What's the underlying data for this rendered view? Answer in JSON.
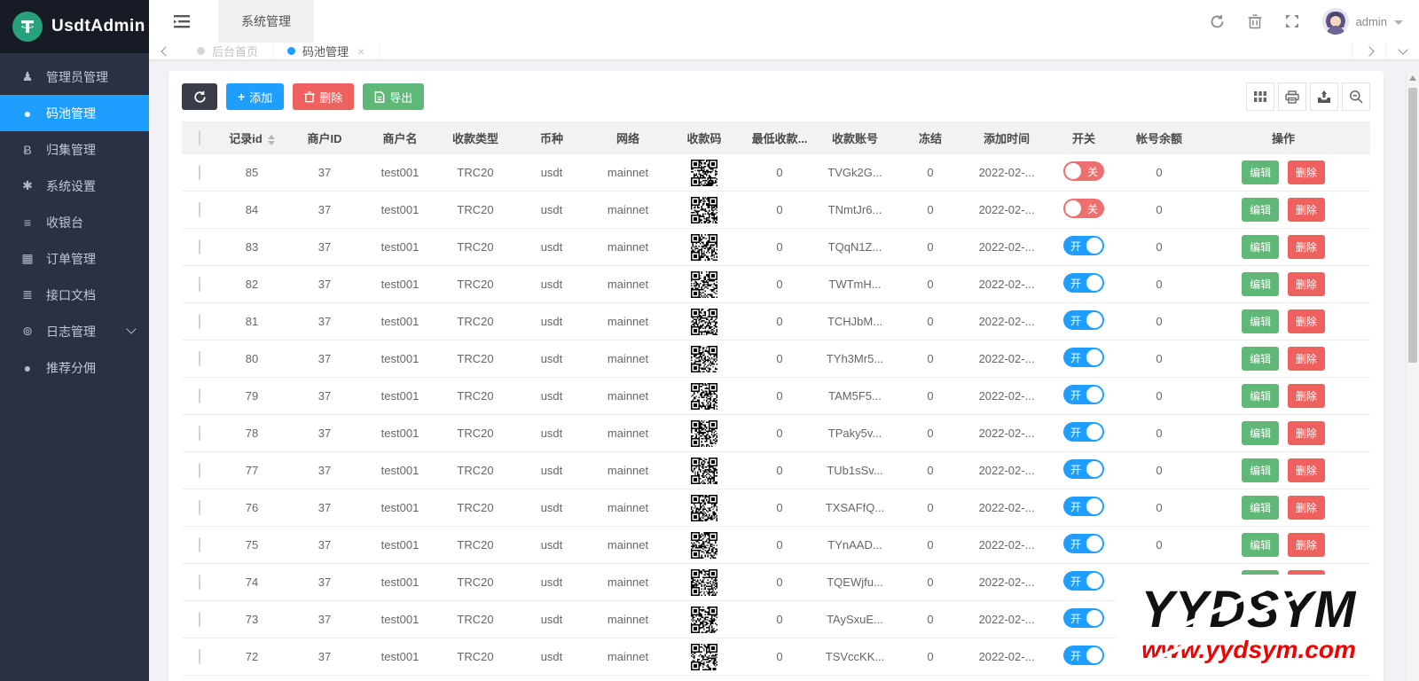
{
  "app": {
    "title": "UsdtAdmin"
  },
  "sidebar": {
    "items": [
      {
        "id": "admin-manage",
        "label": "管理员管理",
        "icon": "user",
        "active": false,
        "expandable": false
      },
      {
        "id": "code-pool",
        "label": "码池管理",
        "icon": "pool",
        "active": true,
        "expandable": false
      },
      {
        "id": "collection",
        "label": "归集管理",
        "icon": "bitcoin",
        "active": false,
        "expandable": false
      },
      {
        "id": "system-settings",
        "label": "系统设置",
        "icon": "settings",
        "active": false,
        "expandable": false
      },
      {
        "id": "cashier",
        "label": "收银台",
        "icon": "cashier",
        "active": false,
        "expandable": false
      },
      {
        "id": "orders",
        "label": "订单管理",
        "icon": "orders",
        "active": false,
        "expandable": false
      },
      {
        "id": "api-docs",
        "label": "接口文档",
        "icon": "docs",
        "active": false,
        "expandable": false
      },
      {
        "id": "logs",
        "label": "日志管理",
        "icon": "logs",
        "active": false,
        "expandable": true
      },
      {
        "id": "referral",
        "label": "推荐分佣",
        "icon": "referral",
        "active": false,
        "expandable": false
      }
    ]
  },
  "topbar": {
    "active_tab": "系统管理",
    "username": "admin"
  },
  "tabbar": {
    "tabs": [
      {
        "label": "后台首页",
        "active": false
      },
      {
        "label": "码池管理",
        "active": true
      }
    ]
  },
  "toolbar": {
    "add_label": "添加",
    "delete_label": "删除",
    "export_label": "导出"
  },
  "table": {
    "headers": [
      {
        "label": "记录id",
        "sortable": true
      },
      {
        "label": "商户ID",
        "sortable": false
      },
      {
        "label": "商户名",
        "sortable": false
      },
      {
        "label": "收款类型",
        "sortable": false
      },
      {
        "label": "币种",
        "sortable": false
      },
      {
        "label": "网络",
        "sortable": false
      },
      {
        "label": "收款码",
        "sortable": false
      },
      {
        "label": "最低收款...",
        "sortable": false
      },
      {
        "label": "收款账号",
        "sortable": false
      },
      {
        "label": "冻结",
        "sortable": false
      },
      {
        "label": "添加时间",
        "sortable": false
      },
      {
        "label": "开关",
        "sortable": false
      },
      {
        "label": "帐号余额",
        "sortable": false
      },
      {
        "label": "操作",
        "sortable": false
      }
    ],
    "switch_on_label": "开",
    "switch_off_label": "关",
    "edit_label": "编辑",
    "delete_label": "删除",
    "rows": [
      {
        "record_id": "85",
        "merchant_id": "37",
        "merchant_name": "test001",
        "pay_type": "TRC20",
        "coin": "usdt",
        "network": "mainnet",
        "min_amount": "0",
        "account": "TVGk2G...",
        "frozen": "0",
        "created": "2022-02-...",
        "switch_on": false,
        "balance": "0"
      },
      {
        "record_id": "84",
        "merchant_id": "37",
        "merchant_name": "test001",
        "pay_type": "TRC20",
        "coin": "usdt",
        "network": "mainnet",
        "min_amount": "0",
        "account": "TNmtJr6...",
        "frozen": "0",
        "created": "2022-02-...",
        "switch_on": false,
        "balance": "0"
      },
      {
        "record_id": "83",
        "merchant_id": "37",
        "merchant_name": "test001",
        "pay_type": "TRC20",
        "coin": "usdt",
        "network": "mainnet",
        "min_amount": "0",
        "account": "TQqN1Z...",
        "frozen": "0",
        "created": "2022-02-...",
        "switch_on": true,
        "balance": "0"
      },
      {
        "record_id": "82",
        "merchant_id": "37",
        "merchant_name": "test001",
        "pay_type": "TRC20",
        "coin": "usdt",
        "network": "mainnet",
        "min_amount": "0",
        "account": "TWTmH...",
        "frozen": "0",
        "created": "2022-02-...",
        "switch_on": true,
        "balance": "0"
      },
      {
        "record_id": "81",
        "merchant_id": "37",
        "merchant_name": "test001",
        "pay_type": "TRC20",
        "coin": "usdt",
        "network": "mainnet",
        "min_amount": "0",
        "account": "TCHJbM...",
        "frozen": "0",
        "created": "2022-02-...",
        "switch_on": true,
        "balance": "0"
      },
      {
        "record_id": "80",
        "merchant_id": "37",
        "merchant_name": "test001",
        "pay_type": "TRC20",
        "coin": "usdt",
        "network": "mainnet",
        "min_amount": "0",
        "account": "TYh3Mr5...",
        "frozen": "0",
        "created": "2022-02-...",
        "switch_on": true,
        "balance": "0"
      },
      {
        "record_id": "79",
        "merchant_id": "37",
        "merchant_name": "test001",
        "pay_type": "TRC20",
        "coin": "usdt",
        "network": "mainnet",
        "min_amount": "0",
        "account": "TAM5F5...",
        "frozen": "0",
        "created": "2022-02-...",
        "switch_on": true,
        "balance": "0"
      },
      {
        "record_id": "78",
        "merchant_id": "37",
        "merchant_name": "test001",
        "pay_type": "TRC20",
        "coin": "usdt",
        "network": "mainnet",
        "min_amount": "0",
        "account": "TPaky5v...",
        "frozen": "0",
        "created": "2022-02-...",
        "switch_on": true,
        "balance": "0"
      },
      {
        "record_id": "77",
        "merchant_id": "37",
        "merchant_name": "test001",
        "pay_type": "TRC20",
        "coin": "usdt",
        "network": "mainnet",
        "min_amount": "0",
        "account": "TUb1sSv...",
        "frozen": "0",
        "created": "2022-02-...",
        "switch_on": true,
        "balance": "0"
      },
      {
        "record_id": "76",
        "merchant_id": "37",
        "merchant_name": "test001",
        "pay_type": "TRC20",
        "coin": "usdt",
        "network": "mainnet",
        "min_amount": "0",
        "account": "TXSAFfQ...",
        "frozen": "0",
        "created": "2022-02-...",
        "switch_on": true,
        "balance": "0"
      },
      {
        "record_id": "75",
        "merchant_id": "37",
        "merchant_name": "test001",
        "pay_type": "TRC20",
        "coin": "usdt",
        "network": "mainnet",
        "min_amount": "0",
        "account": "TYnAAD...",
        "frozen": "0",
        "created": "2022-02-...",
        "switch_on": true,
        "balance": "0"
      },
      {
        "record_id": "74",
        "merchant_id": "37",
        "merchant_name": "test001",
        "pay_type": "TRC20",
        "coin": "usdt",
        "network": "mainnet",
        "min_amount": "0",
        "account": "TQEWjfu...",
        "frozen": "0",
        "created": "2022-02-...",
        "switch_on": true,
        "balance": "0"
      },
      {
        "record_id": "73",
        "merchant_id": "37",
        "merchant_name": "test001",
        "pay_type": "TRC20",
        "coin": "usdt",
        "network": "mainnet",
        "min_amount": "0",
        "account": "TAySxuE...",
        "frozen": "0",
        "created": "2022-02-...",
        "switch_on": true,
        "balance": "0"
      },
      {
        "record_id": "72",
        "merchant_id": "37",
        "merchant_name": "test001",
        "pay_type": "TRC20",
        "coin": "usdt",
        "network": "mainnet",
        "min_amount": "0",
        "account": "TSVccKK...",
        "frozen": "0",
        "created": "2022-02-...",
        "switch_on": true,
        "balance": "0"
      }
    ]
  },
  "watermark": {
    "title": "YYDSYM",
    "url": "www.yydsym.com"
  },
  "colors": {
    "accent": "#1e9fff",
    "success": "#5fb878",
    "danger": "#ee615e",
    "dark_button": "#393d49",
    "sidebar_bg": "#2a3142",
    "logo_bg": "#171b26",
    "tether_green": "#26a17b",
    "toggle_off": "#ed6f6f",
    "watermark_red": "#f20000"
  }
}
